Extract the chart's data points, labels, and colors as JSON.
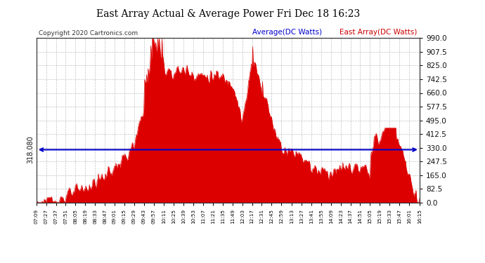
{
  "title": "East Array Actual & Average Power Fri Dec 18 16:23",
  "copyright": "Copyright 2020 Cartronics.com",
  "avg_label": "Average(DC Watts)",
  "east_label": "East Array(DC Watts)",
  "avg_value": 318.08,
  "ylim": [
    0,
    990
  ],
  "yticks": [
    0,
    82.5,
    165.0,
    247.5,
    330.0,
    412.5,
    495.0,
    577.5,
    660.0,
    742.5,
    825.0,
    907.5,
    990.0
  ],
  "fill_color": "#dd0000",
  "avg_line_color": "#0000cc",
  "avg_text_color": "#0000cc",
  "east_text_color": "#cc0000",
  "bg_color": "#ffffff",
  "grid_color": "#999999",
  "title_color": "#000000",
  "xtick_labels": [
    "07:09",
    "07:27",
    "07:37",
    "07:51",
    "08:05",
    "08:19",
    "08:33",
    "08:47",
    "09:01",
    "09:15",
    "09:29",
    "09:43",
    "09:57",
    "10:11",
    "10:25",
    "10:39",
    "10:53",
    "11:07",
    "11:21",
    "11:35",
    "11:49",
    "12:03",
    "12:17",
    "12:31",
    "12:45",
    "12:59",
    "13:13",
    "13:27",
    "13:41",
    "13:55",
    "14:09",
    "14:23",
    "14:37",
    "14:51",
    "15:05",
    "15:19",
    "15:33",
    "15:47",
    "16:01",
    "16:15"
  ],
  "profile_knots_t": [
    429,
    447,
    457,
    471,
    485,
    499,
    513,
    527,
    541,
    555,
    569,
    583,
    597,
    611,
    625,
    639,
    653,
    667,
    681,
    695,
    709,
    723,
    737,
    751,
    765,
    779,
    793,
    807,
    821,
    835,
    849,
    863,
    877,
    891,
    905,
    919,
    933,
    947,
    961,
    975
  ],
  "profile_knots_v": [
    5,
    12,
    20,
    35,
    60,
    90,
    120,
    165,
    210,
    270,
    340,
    600,
    940,
    820,
    780,
    800,
    780,
    760,
    760,
    750,
    730,
    480,
    870,
    700,
    480,
    330,
    310,
    290,
    210,
    195,
    185,
    200,
    215,
    195,
    180,
    240,
    340,
    380,
    120,
    5
  ],
  "noise_seed": 123,
  "noise_amp": 35
}
